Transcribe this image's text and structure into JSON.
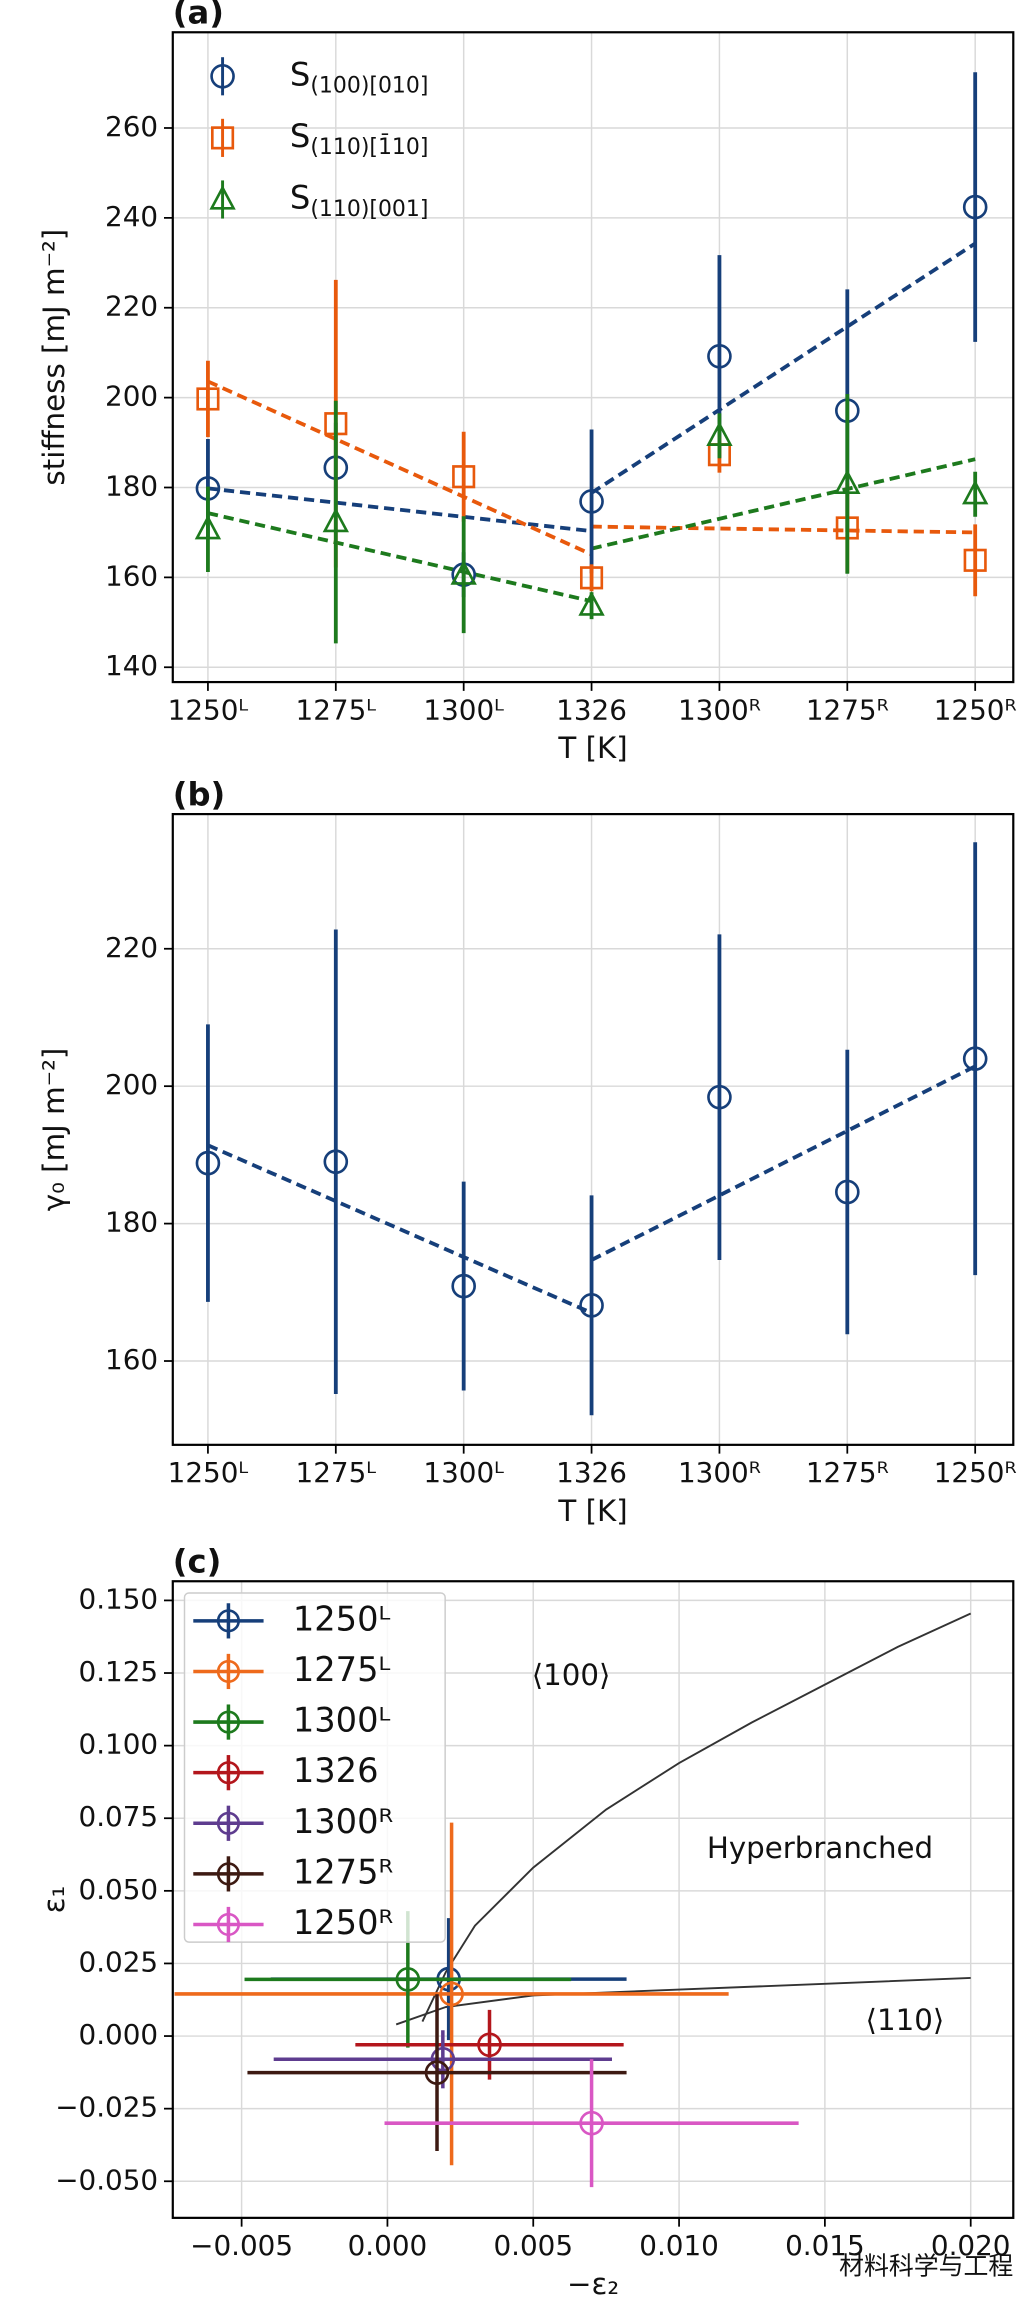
{
  "chart_data": [
    {
      "type": "errorbar",
      "label": "(a)",
      "xlabel": "T [K]",
      "ylabel": "stiffness [mJ m⁻²]",
      "categories": [
        "1250ᴸ",
        "1275ᴸ",
        "1300ᴸ",
        "1326",
        "1300ᴿ",
        "1275ᴿ",
        "1250ᴿ"
      ],
      "ylim": [
        136.7,
        281.3
      ],
      "yticks": [
        140,
        160,
        180,
        200,
        220,
        240,
        260
      ],
      "grid": true,
      "legend": "upper left",
      "series": [
        {
          "name": "S",
          "subscript": "(100)[010]",
          "color": "#163f7a",
          "marker": "circle",
          "values": [
            179.8,
            184.4,
            160.6,
            176.9,
            209.2,
            197.1,
            242.4
          ],
          "errors": [
            11,
            10,
            5,
            16,
            22.5,
            27,
            30
          ],
          "fit_left": [
            179.8,
            170.3
          ],
          "fit_right": [
            178.8,
            234.3
          ]
        },
        {
          "name": "S",
          "subscript": "(110)[1̄10]",
          "color": "#e8590c",
          "marker": "square",
          "values": [
            199.7,
            194.2,
            182.4,
            159.9,
            187.3,
            171,
            163.8
          ],
          "errors": [
            8.5,
            32,
            10,
            3,
            4,
            10,
            8
          ],
          "fit_left": [
            203.6,
            165.1
          ],
          "fit_right": [
            171.3,
            170.0
          ]
        },
        {
          "name": "S",
          "subscript": "(110)[001]",
          "color": "#1d7a1d",
          "marker": "triangle",
          "values": [
            170.7,
            172.3,
            160.6,
            153.7,
            191.5,
            180.8,
            178.5
          ],
          "errors": [
            9.5,
            27,
            13,
            3,
            5,
            20,
            5
          ],
          "fit_left": [
            174.3,
            154.7
          ],
          "fit_right": [
            166.4,
            186.3
          ]
        }
      ]
    },
    {
      "type": "errorbar",
      "label": "(b)",
      "xlabel": "T [K]",
      "ylabel": "γ₀ [mJ m⁻²]",
      "categories": [
        "1250ᴸ",
        "1275ᴸ",
        "1300ᴸ",
        "1326",
        "1300ᴿ",
        "1275ᴿ",
        "1250ᴿ"
      ],
      "ylim": [
        147.8,
        239.6
      ],
      "yticks": [
        160,
        180,
        200,
        220
      ],
      "grid": true,
      "series": [
        {
          "color": "#163f7a",
          "marker": "circle",
          "values": [
            188.8,
            189.0,
            170.9,
            168.1,
            198.4,
            184.6,
            204.0
          ],
          "errors": [
            20.2,
            33.8,
            15.2,
            16,
            23.7,
            20.7,
            31.5
          ],
          "fit_left": [
            191.4,
            167.0
          ],
          "fit_right": [
            174.7,
            202.9
          ]
        }
      ]
    },
    {
      "type": "scatter_error",
      "label": "(c)",
      "xlabel": "−ε₂",
      "ylabel": "ε₁",
      "xlim": [
        -0.00736,
        0.02146
      ],
      "ylim": [
        -0.0626,
        0.1566
      ],
      "grid": true,
      "legend": "upper left",
      "xticks": [
        {
          "value": -0.005,
          "label": "−0.005"
        },
        {
          "value": 0,
          "label": "0.000"
        },
        0.005,
        {
          "value": 0.01,
          "label": "0.010"
        },
        0.015,
        {
          "value": 0.02,
          "label": "0.020"
        }
      ],
      "yticks": [
        {
          "value": 0.15,
          "label": "0.150"
        },
        0.125,
        {
          "value": 0.1,
          "label": "0.100"
        },
        0.075,
        {
          "value": 0.05,
          "label": "0.050"
        },
        0.025,
        {
          "value": 0,
          "label": "0.000"
        },
        {
          "value": -0.025,
          "label": "−0.025"
        },
        {
          "value": -0.05,
          "label": "−0.050"
        }
      ],
      "series": [
        {
          "name": "1250ᴸ",
          "color": "#163f7a",
          "x": [
            0.0021
          ],
          "values": [
            0.0196
          ],
          "xerr": [
            0.0061
          ],
          "yerr": [
            0.021
          ]
        },
        {
          "name": "1275ᴸ",
          "color": "#ee6a1c",
          "x": [
            0.0022
          ],
          "values": [
            0.0145
          ],
          "xerr": [
            0.0095
          ],
          "yerr": [
            0.059
          ]
        },
        {
          "name": "1300ᴸ",
          "color": "#1d7a1d",
          "x": [
            0.0007
          ],
          "values": [
            0.0195
          ],
          "xerr": [
            0.0056
          ],
          "yerr": [
            0.0235
          ]
        },
        {
          "name": "1326",
          "color": "#b3161c",
          "x": [
            0.0035
          ],
          "values": [
            -0.003
          ],
          "xerr": [
            0.0046
          ],
          "yerr": [
            0.012
          ]
        },
        {
          "name": "1300ᴿ",
          "color": "#5e3c8f",
          "x": [
            0.0019
          ],
          "values": [
            -0.008
          ],
          "xerr": [
            0.0058
          ],
          "yerr": [
            0.01
          ]
        },
        {
          "name": "1275ᴿ",
          "color": "#3d1a12",
          "x": [
            0.0017
          ],
          "values": [
            -0.0126
          ],
          "xerr": [
            0.0065
          ],
          "yerr": [
            0.027
          ]
        },
        {
          "name": "1250ᴿ",
          "color": "#d957c4",
          "x": [
            0.007
          ],
          "values": [
            -0.03
          ],
          "xerr": [
            0.0071
          ],
          "yerr": [
            0.022
          ]
        }
      ],
      "curves": [
        {
          "color": "#333333",
          "x": [
            0.0012,
            0.002,
            0.003,
            0.005,
            0.0075,
            0.01,
            0.0125,
            0.015,
            0.0175,
            0.02
          ],
          "values": [
            0.005,
            0.022,
            0.038,
            0.058,
            0.078,
            0.094,
            0.108,
            0.121,
            0.134,
            0.1455
          ]
        },
        {
          "color": "#333333",
          "x": [
            0.0003,
            0.002,
            0.005,
            0.01,
            0.015,
            0.02
          ],
          "values": [
            0.004,
            0.01,
            0.014,
            0.016,
            0.018,
            0.02
          ]
        }
      ],
      "annotations": [
        "⟨100⟩",
        "Hyperbranched",
        "⟨110⟩"
      ]
    },
    {
      "type": "watermark",
      "text": "材料科学与工程"
    }
  ]
}
